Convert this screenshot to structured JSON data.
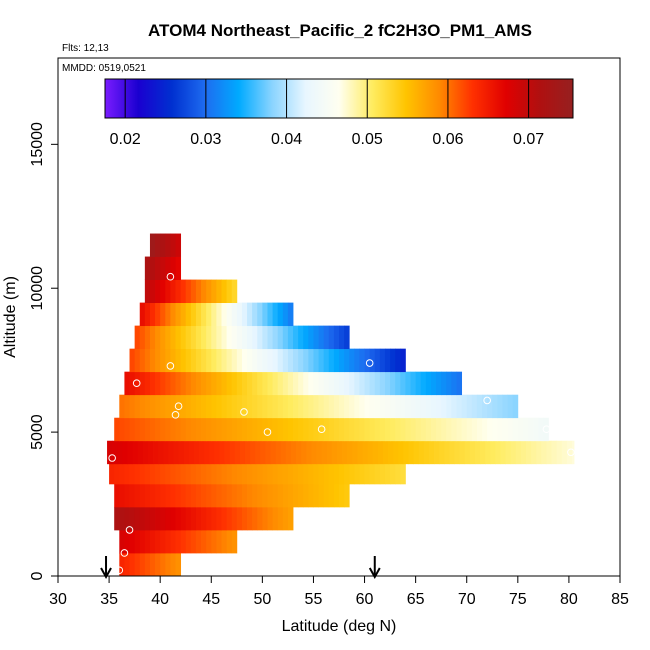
{
  "chart_data": {
    "type": "heatmap",
    "title": "ATOM4 Northeast_Pacific_2 fC2H3O_PM1_AMS",
    "subtitle_flights": "Flts: 12,13",
    "subtitle_dates": "MMDD: 0519,0521",
    "xlabel": "Latitude (deg N)",
    "ylabel": "Altitude (m)",
    "xlim": [
      30,
      85
    ],
    "ylim": [
      0,
      18000
    ],
    "x_ticks": [
      "30",
      "35",
      "40",
      "45",
      "50",
      "55",
      "60",
      "65",
      "70",
      "75",
      "80",
      "85"
    ],
    "y_ticks": [
      "0",
      "5000",
      "10000",
      "15000"
    ],
    "colorbar": {
      "range": [
        0.0175,
        0.0755
      ],
      "ticks": [
        "0.02",
        "0.03",
        "0.04",
        "0.05",
        "0.06",
        "0.07"
      ],
      "colors": [
        "#7a1cff",
        "#1a00d0",
        "#0030d0",
        "#1e6cf0",
        "#00aaff",
        "#8ad4ff",
        "#e8f6ff",
        "#fffff0",
        "#ffec60",
        "#ffc400",
        "#ff8a00",
        "#ff3000",
        "#e00000",
        "#b01010",
        "#962020"
      ]
    },
    "profile_strips": [
      {
        "alt": 400,
        "lat_min": 36.0,
        "lat_max": 42.0,
        "left_val": 0.064,
        "right_val": 0.058
      },
      {
        "alt": 1200,
        "lat_min": 36.0,
        "lat_max": 47.5,
        "left_val": 0.068,
        "right_val": 0.058
      },
      {
        "alt": 2000,
        "lat_min": 35.5,
        "lat_max": 53.0,
        "left_val": 0.072,
        "right_val": 0.057
      },
      {
        "alt": 2800,
        "lat_min": 35.5,
        "lat_max": 58.5,
        "left_val": 0.066,
        "right_val": 0.054
      },
      {
        "alt": 3600,
        "lat_min": 35.0,
        "lat_max": 64.0,
        "left_val": 0.064,
        "right_val": 0.052
      },
      {
        "alt": 4300,
        "lat_min": 34.8,
        "lat_max": 80.5,
        "left_val": 0.068,
        "right_val": 0.047
      },
      {
        "alt": 5100,
        "lat_min": 35.5,
        "lat_max": 78.0,
        "left_val": 0.062,
        "right_val": 0.044
      },
      {
        "alt": 5900,
        "lat_min": 36.0,
        "lat_max": 75.0,
        "left_val": 0.06,
        "right_val": 0.038
      },
      {
        "alt": 6700,
        "lat_min": 36.5,
        "lat_max": 69.5,
        "left_val": 0.066,
        "right_val": 0.03
      },
      {
        "alt": 7500,
        "lat_min": 37.0,
        "lat_max": 64.0,
        "left_val": 0.062,
        "right_val": 0.024
      },
      {
        "alt": 8300,
        "lat_min": 37.5,
        "lat_max": 58.5,
        "left_val": 0.062,
        "right_val": 0.026
      },
      {
        "alt": 9100,
        "lat_min": 38.0,
        "lat_max": 53.0,
        "left_val": 0.066,
        "right_val": 0.03
      },
      {
        "alt": 9900,
        "lat_min": 38.5,
        "lat_max": 47.5,
        "left_val": 0.07,
        "right_val": 0.052
      },
      {
        "alt": 10700,
        "lat_min": 38.5,
        "lat_max": 42.0,
        "left_val": 0.072,
        "right_val": 0.066
      },
      {
        "alt": 11500,
        "lat_min": 39.0,
        "lat_max": 42.0,
        "left_val": 0.074,
        "right_val": 0.068
      }
    ],
    "sample_points": [
      {
        "lat": 39.3,
        "alt": 12300
      },
      {
        "lat": 41.0,
        "alt": 10400
      },
      {
        "lat": 41.0,
        "alt": 7300
      },
      {
        "lat": 37.7,
        "alt": 6700
      },
      {
        "lat": 41.8,
        "alt": 5900
      },
      {
        "lat": 41.5,
        "alt": 5600
      },
      {
        "lat": 48.2,
        "alt": 5700
      },
      {
        "lat": 50.5,
        "alt": 5000
      },
      {
        "lat": 55.8,
        "alt": 5100
      },
      {
        "lat": 60.5,
        "alt": 7400
      },
      {
        "lat": 72.0,
        "alt": 6100
      },
      {
        "lat": 77.8,
        "alt": 5100
      },
      {
        "lat": 80.2,
        "alt": 4300
      },
      {
        "lat": 35.3,
        "alt": 4100
      },
      {
        "lat": 37.0,
        "alt": 1600
      },
      {
        "lat": 36.5,
        "alt": 800
      },
      {
        "lat": 36.0,
        "alt": 200
      }
    ],
    "arrows_lat": [
      34.7,
      61.0
    ]
  }
}
